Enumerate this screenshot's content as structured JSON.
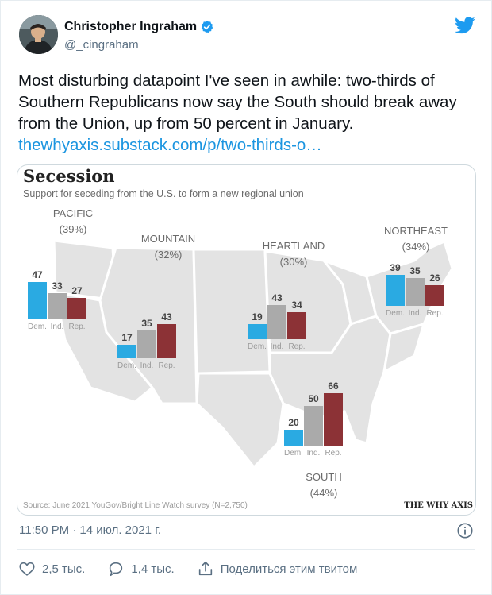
{
  "author": {
    "name": "Christopher Ingraham",
    "handle": "@_cingraham"
  },
  "tweet": {
    "text": "Most disturbing datapoint I've seen in awhile: two-thirds of Southern Republicans now say the South should break away from the Union, up from 50 percent in January.",
    "link": "thewhyaxis.substack.com/p/two-thirds-o…",
    "timestamp": "11:50 PM · 14 июл. 2021 г."
  },
  "actions": {
    "likes": "2,5 тыс.",
    "replies": "1,4 тыс.",
    "share": "Поделиться этим твитом"
  },
  "colors": {
    "dem": "#2aaae2",
    "ind": "#aaaaaa",
    "rep": "#8c3236",
    "map": "#e3e3e3",
    "link": "#1b95e0",
    "verified": "#1d9bf0"
  },
  "chart_data": {
    "type": "bar",
    "title": "Secession",
    "subtitle": "Support for seceding from the U.S. to form a new regional union",
    "source": "Source: June 2021 YouGov/Bright Line Watch survey (N=2,750)",
    "brand": "THE WHY AXIS",
    "categories": [
      "Dem.",
      "Ind.",
      "Rep."
    ],
    "regions": [
      {
        "name": "PACIFIC",
        "total": "(39%)",
        "values": [
          47,
          33,
          27
        ]
      },
      {
        "name": "MOUNTAIN",
        "total": "(32%)",
        "values": [
          17,
          35,
          43
        ]
      },
      {
        "name": "HEARTLAND",
        "total": "(30%)",
        "values": [
          19,
          43,
          34
        ]
      },
      {
        "name": "NORTHEAST",
        "total": "(34%)",
        "values": [
          39,
          35,
          26
        ]
      },
      {
        "name": "SOUTH",
        "total": "(44%)",
        "values": [
          20,
          50,
          66
        ]
      }
    ]
  }
}
